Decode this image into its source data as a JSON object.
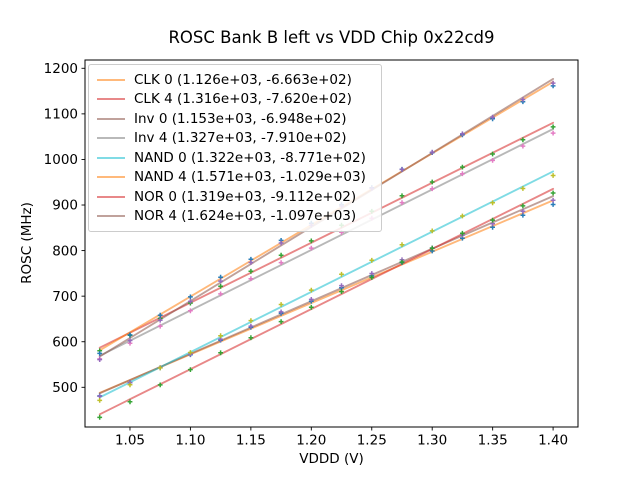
{
  "chart_data": {
    "type": "scatter",
    "title": "ROSC Bank B left vs VDD Chip 0x22cd9",
    "xlabel": "VDDD (V)",
    "ylabel": "ROSC (MHz)",
    "grid": false,
    "legend_position": "upper left",
    "legend_note": "each entry shows (slope, intercept) of linear fit in MHz/V and MHz",
    "xlim": [
      1.0128,
      1.4206
    ],
    "ylim": [
      412.9,
      1218.2
    ],
    "xticks": [
      1.05,
      1.1,
      1.15,
      1.2,
      1.25,
      1.3,
      1.35,
      1.4
    ],
    "yticks": [
      500,
      600,
      700,
      800,
      900,
      1000,
      1100,
      1200
    ],
    "x": [
      1.025,
      1.05,
      1.075,
      1.1,
      1.125,
      1.15,
      1.175,
      1.2,
      1.225,
      1.25,
      1.275,
      1.3,
      1.325,
      1.35,
      1.375,
      1.4
    ],
    "series": [
      {
        "name": "CLK 0",
        "label": "CLK 0 (1.126e+03, -6.663e+02)",
        "slope": 1126.0,
        "intercept": -666.3,
        "line_color": "#ff7f0e",
        "point_color": "#1f77b4",
        "points": [
          481.1,
          510.4,
          542.7,
          571.5,
          603.6,
          631.8,
          662.3,
          688.9,
          718.6,
          744.5,
          773.8,
          799.2,
          827.1,
          851.1,
          877.6,
          901.1
        ]
      },
      {
        "name": "CLK 4",
        "label": "CLK 4 (1.316e+03, -7.620e+02)",
        "slope": 1316.0,
        "intercept": -762.0,
        "line_color": "#d62728",
        "point_color": "#2ca02c",
        "points": [
          580.1,
          614.2,
          651.2,
          684.8,
          721.6,
          754.6,
          789.8,
          821.2,
          855.6,
          886.3,
          920.3,
          950.5,
          983.1,
          1011.9,
          1043.1,
          1071.4
        ]
      },
      {
        "name": "Inv 0",
        "label": "Inv 0 (1.153e+03, -6.948e+02)",
        "slope": 1153.0,
        "intercept": -694.8,
        "line_color": "#8c564b",
        "point_color": "#9467bd",
        "points": [
          480.2,
          510.3,
          543.2,
          572.7,
          605.4,
          634.4,
          665.5,
          692.8,
          723.1,
          749.8,
          779.7,
          805.8,
          834.3,
          859.1,
          886.2,
          910.4
        ]
      },
      {
        "name": "Inv 4",
        "label": "Inv 4 (1.327e+03, -7.910e+02)",
        "slope": 1327.0,
        "intercept": -791.0,
        "line_color": "#7f7f7f",
        "point_color": "#e377c2",
        "points": [
          562.4,
          596.8,
          634.0,
          667.9,
          705.0,
          738.3,
          773.7,
          805.4,
          840.1,
          871.1,
          905.3,
          935.8,
          968.7,
          997.8,
          1029.2,
          1057.8
        ]
      },
      {
        "name": "NAND 0",
        "label": "NAND 0 (1.322e+03, -8.771e+02)",
        "slope": 1322.0,
        "intercept": -877.1,
        "line_color": "#17becf",
        "point_color": "#bcbd22",
        "points": [
          471.2,
          505.4,
          542.6,
          576.3,
          613.3,
          646.4,
          681.8,
          713.3,
          747.9,
          778.7,
          812.9,
          843.2,
          876.0,
          904.9,
          936.3,
          964.7
        ]
      },
      {
        "name": "NAND 4",
        "label": "NAND 4 (1.571e+03, -1.029e+03)",
        "slope": 1571.0,
        "intercept": -1029.0,
        "line_color": "#ff7f0e",
        "point_color": "#1f77b4",
        "points": [
          574.5,
          615.0,
          658.3,
          698.3,
          741.5,
          780.9,
          822.4,
          860.2,
          901.0,
          938.1,
          978.4,
          1015.0,
          1054.0,
          1089.2,
          1126.7,
          1161.4
        ]
      },
      {
        "name": "NOR 0",
        "label": "NOR 0 (1.319e+03, -9.112e+02)",
        "slope": 1319.0,
        "intercept": -911.2,
        "line_color": "#d62728",
        "point_color": "#2ca02c",
        "points": [
          434.0,
          468.2,
          505.2,
          538.9,
          575.8,
          608.9,
          644.1,
          675.6,
          710.1,
          740.9,
          774.9,
          805.2,
          837.9,
          866.8,
          898.0,
          926.4
        ]
      },
      {
        "name": "NOR 4",
        "label": "NOR 4 (1.624e+03, -1.097e+03)",
        "slope": 1624.0,
        "intercept": -1097.0,
        "line_color": "#8c564b",
        "point_color": "#9467bd",
        "points": [
          560.8,
          602.6,
          647.3,
          688.6,
          733.1,
          773.8,
          816.7,
          855.8,
          897.9,
          936.3,
          978.0,
          1015.9,
          1056.2,
          1092.7,
          1131.6,
          1167.6
        ]
      }
    ],
    "style": {
      "spine_color": "#000000",
      "line_opacity": 0.55,
      "marker": "plus",
      "background": "#ffffff"
    }
  }
}
